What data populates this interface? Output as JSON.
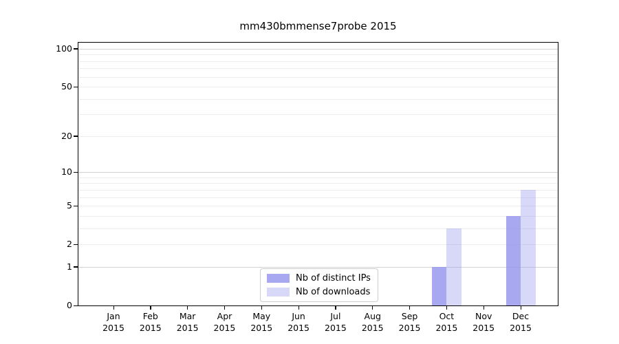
{
  "title": "mm430bmmense7probe 2015",
  "chart_data": {
    "type": "bar",
    "title": "mm430bmmense7probe 2015",
    "categories": [
      "Jan",
      "Feb",
      "Mar",
      "Apr",
      "May",
      "Jun",
      "Jul",
      "Aug",
      "Sep",
      "Oct",
      "Nov",
      "Dec"
    ],
    "category_year": "2015",
    "series": [
      {
        "name": "Nb of distinct IPs",
        "color": "rgba(153,153,238,0.85)",
        "color_hex": "#a8a8f0",
        "values": [
          0,
          0,
          0,
          0,
          0,
          0,
          0,
          0,
          0,
          1,
          0,
          4
        ]
      },
      {
        "name": "Nb of downloads",
        "color": "rgba(153,153,238,0.38)",
        "color_hex": "#d8d8f8",
        "values": [
          0,
          0,
          0,
          0,
          0,
          0,
          0,
          0,
          0,
          3,
          0,
          7
        ]
      }
    ],
    "xlabel": "",
    "ylabel": "",
    "yscale": "log1p",
    "ylim": [
      0,
      110
    ],
    "yticks": [
      0,
      1,
      2,
      5,
      10,
      20,
      50,
      100
    ],
    "ytick_labels": [
      "0",
      "1",
      "2",
      "5",
      "10",
      "20",
      "50",
      "100"
    ],
    "major_gridlines": [
      1,
      10,
      100
    ],
    "minor_gridlines": [
      2,
      3,
      4,
      5,
      6,
      7,
      8,
      9,
      20,
      30,
      40,
      50,
      60,
      70,
      80,
      90
    ],
    "grid": "horizontal",
    "legend_position": "lower center"
  },
  "colors": {
    "background": "#ffffff",
    "spine": "#000000",
    "grid_minor": "#ececec",
    "grid_major": "#d2d2d2",
    "legend_border": "#cccccc",
    "text": "#000000"
  }
}
